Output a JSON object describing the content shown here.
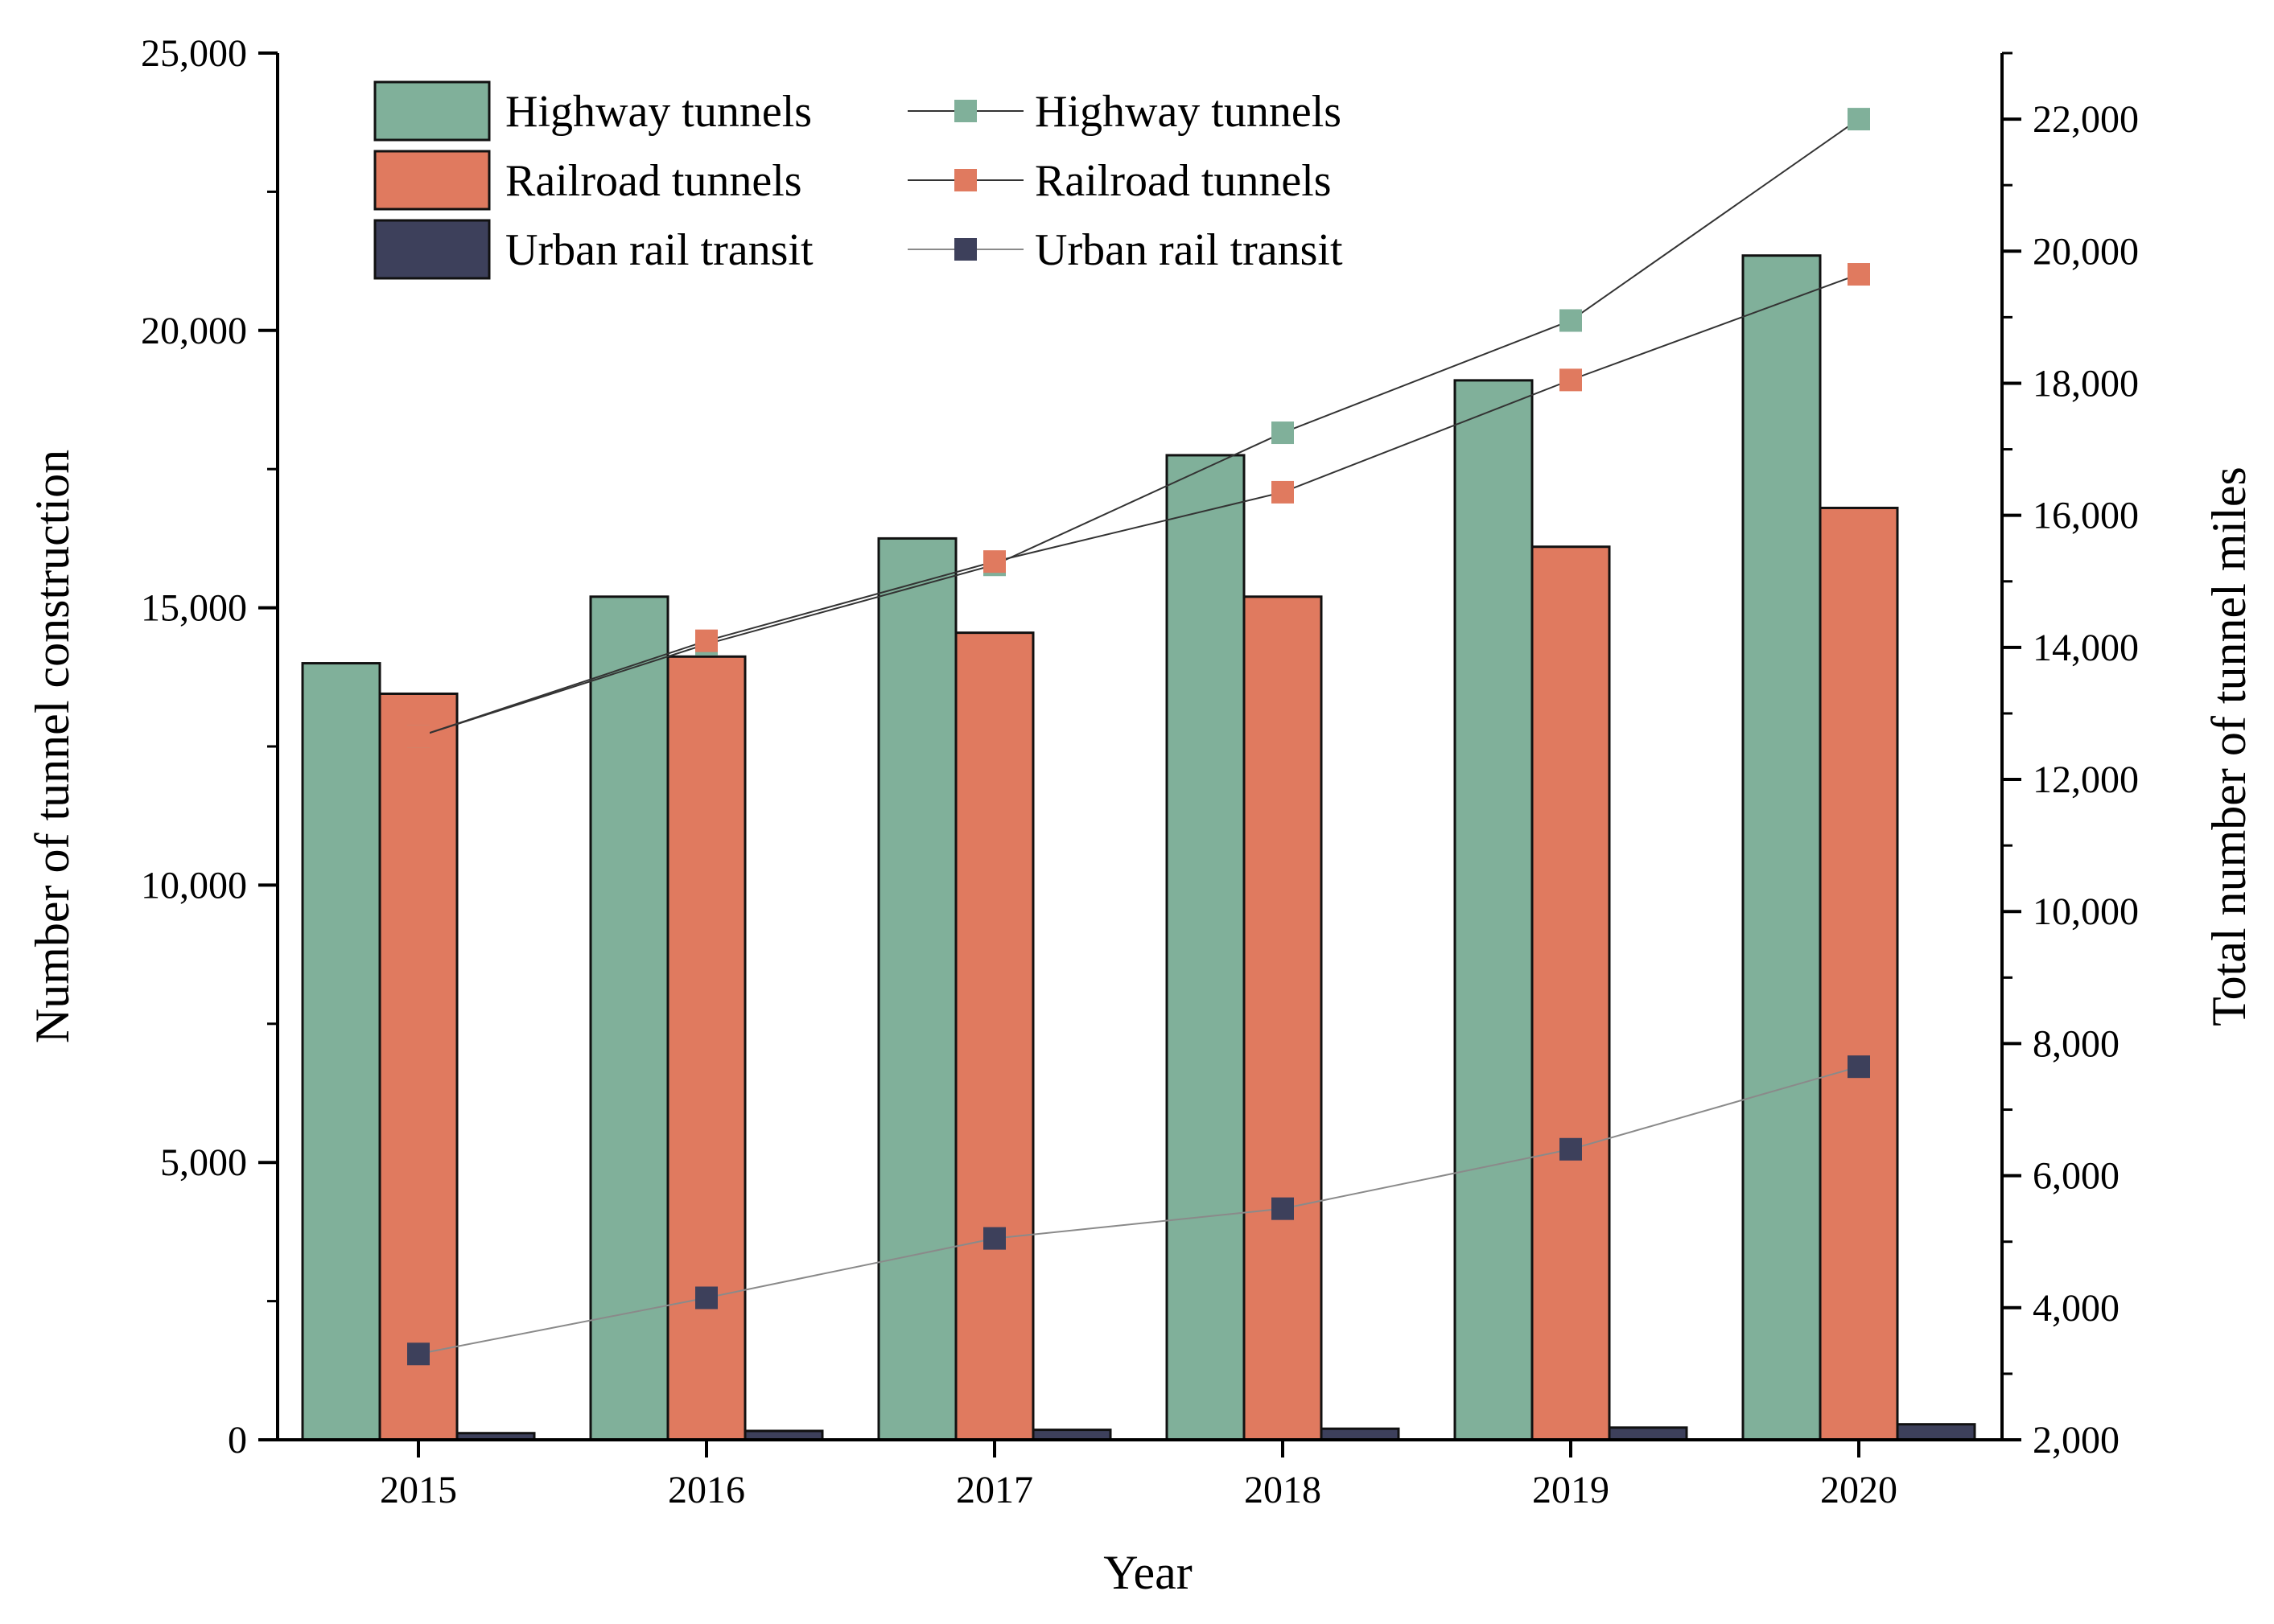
{
  "chart_data": {
    "type": "bar+line",
    "title": "",
    "xlabel": "Year",
    "ylabel": "Number of tunnel construction",
    "y2label": "Total number of tunnel miles",
    "categories": [
      "2015",
      "2016",
      "2017",
      "2018",
      "2019",
      "2020"
    ],
    "ylim": [
      0,
      25000
    ],
    "y_ticks": [
      0,
      5000,
      10000,
      15000,
      20000,
      25000
    ],
    "y_tick_labels": [
      "0",
      "5,000",
      "10,000",
      "15,000",
      "20,000",
      "25,000"
    ],
    "y2lim": [
      2000,
      23000
    ],
    "y2_ticks": [
      2000,
      4000,
      6000,
      8000,
      10000,
      12000,
      14000,
      16000,
      18000,
      20000,
      22000
    ],
    "y2_tick_labels": [
      "2,000",
      "4,000",
      "6,000",
      "8,000",
      "10,000",
      "12,000",
      "14,000",
      "16,000",
      "18,000",
      "20,000",
      "22,000"
    ],
    "bar_series": [
      {
        "name": "Highway tunnels",
        "color": "#80b09a",
        "values": [
          14000,
          15200,
          16250,
          17750,
          19100,
          21350
        ]
      },
      {
        "name": "Railroad tunnels",
        "color": "#e07a5f",
        "values": [
          13450,
          14120,
          14550,
          15200,
          16100,
          16800
        ]
      },
      {
        "name": "Urban rail transit",
        "color": "#3d405b",
        "values": [
          120,
          160,
          180,
          200,
          220,
          280
        ]
      }
    ],
    "line_series": [
      {
        "name": "Highway tunnels",
        "color": "#80b09a",
        "values": [
          12650,
          14050,
          15250,
          17250,
          18950,
          22000
        ]
      },
      {
        "name": "Railroad tunnels",
        "color": "#e07a5f",
        "values": [
          12650,
          14100,
          15300,
          16350,
          18050,
          19650
        ]
      },
      {
        "name": "Urban rail transit",
        "color": "#3d405b",
        "values": [
          3300,
          4150,
          5050,
          5500,
          6400,
          7650
        ]
      }
    ],
    "legend_position": "top-left"
  }
}
